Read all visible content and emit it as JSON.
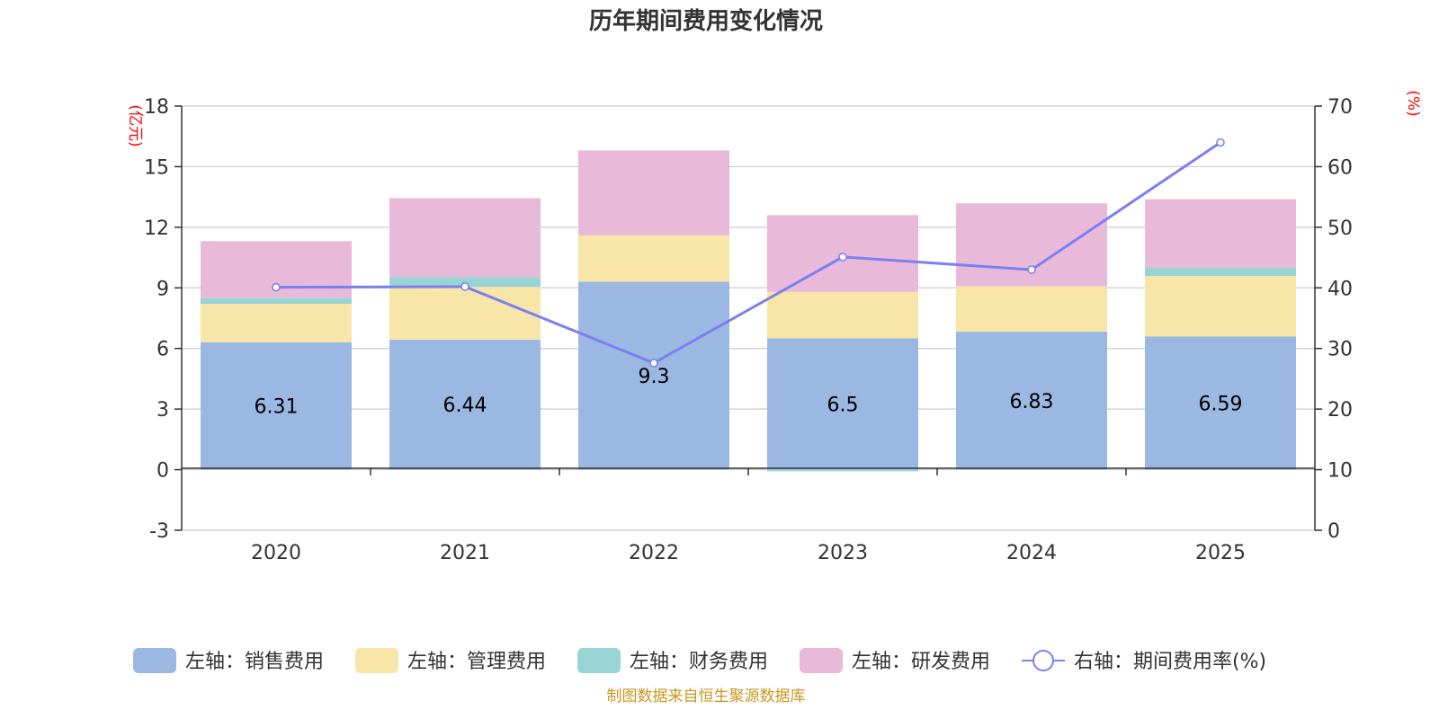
{
  "chart_data": {
    "type": "bar",
    "title": "历年期间费用变化情况",
    "categories": [
      "2020",
      "2021",
      "2022",
      "2023",
      "2024",
      "2025"
    ],
    "series": [
      {
        "name": "左轴：销售费用",
        "axis": "left",
        "color": "#9bb8e2",
        "values": [
          6.31,
          6.44,
          9.3,
          6.5,
          6.83,
          6.59
        ]
      },
      {
        "name": "左轴：管理费用",
        "axis": "left",
        "color": "#f7e6a8",
        "values": [
          1.9,
          2.6,
          2.3,
          2.3,
          2.25,
          3.0
        ]
      },
      {
        "name": "左轴：财务费用",
        "axis": "left",
        "color": "#98d4d4",
        "values": [
          0.3,
          0.5,
          0.0,
          -0.08,
          0.0,
          0.4
        ]
      },
      {
        "name": "左轴：研发费用",
        "axis": "left",
        "color": "#e8b9d9",
        "values": [
          2.8,
          3.9,
          4.2,
          3.8,
          4.1,
          3.4
        ]
      },
      {
        "name": "右轴：期间费用率(%)",
        "axis": "right",
        "type": "line",
        "color": "#7b7ff0",
        "values": [
          40.1,
          40.2,
          27.6,
          45.1,
          43.0,
          64.0
        ]
      }
    ],
    "bar_labels": [
      "6.31",
      "6.44",
      "9.3",
      "6.5",
      "6.83",
      "6.59"
    ],
    "left_axis": {
      "unit": "(亿元)",
      "ylim": [
        -3,
        18
      ],
      "ticks": [
        "18",
        "15",
        "12",
        "9",
        "6",
        "3",
        "0",
        "-3"
      ]
    },
    "right_axis": {
      "unit": "(%)",
      "ylim": [
        0,
        70
      ],
      "ticks": [
        "70",
        "60",
        "50",
        "40",
        "30",
        "20",
        "10",
        "0"
      ]
    },
    "grid": true,
    "legend_position": "bottom",
    "source": "制图数据来自恒生聚源数据库"
  }
}
